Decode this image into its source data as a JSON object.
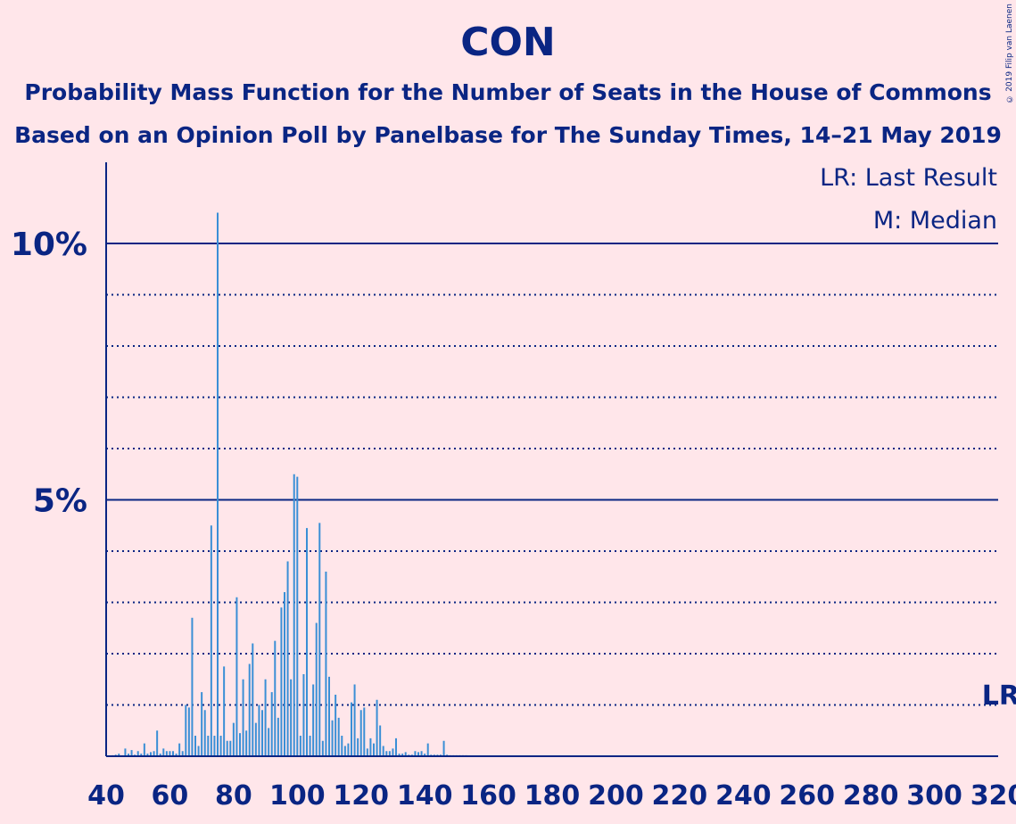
{
  "title": "CON",
  "subtitle1": "Probability Mass Function for the Number of Seats in the House of Commons",
  "subtitle2": "Based on an Opinion Poll by Panelbase for The Sunday Times, 14–21 May 2019",
  "copyright": "© 2019 Filip van Laenen",
  "legend": {
    "last_result": "LR: Last Result",
    "median": "M: Median"
  },
  "lr_label": "LR",
  "colors": {
    "background": "#ffe6ea",
    "axis": "#0a2583",
    "bar": "#3a8fd6"
  },
  "chart_data": {
    "type": "bar",
    "xlabel": "",
    "ylabel": "",
    "xlim": [
      40,
      320
    ],
    "ylim": [
      0,
      11.5
    ],
    "x_ticks": [
      40,
      60,
      80,
      100,
      120,
      140,
      160,
      180,
      200,
      220,
      240,
      260,
      280,
      300,
      320
    ],
    "y_ticks": [
      {
        "value": 5,
        "label": "5%"
      },
      {
        "value": 10,
        "label": "10%"
      }
    ],
    "y_minor_gridlines": [
      1,
      2,
      3,
      4,
      6,
      7,
      8,
      9
    ],
    "last_result_seat": 318,
    "median_seat": 97,
    "x": [
      42,
      43,
      44,
      45,
      46,
      47,
      48,
      49,
      50,
      51,
      52,
      53,
      54,
      55,
      56,
      57,
      58,
      59,
      60,
      61,
      62,
      63,
      64,
      65,
      66,
      67,
      68,
      69,
      70,
      71,
      72,
      73,
      74,
      75,
      76,
      77,
      78,
      79,
      80,
      81,
      82,
      83,
      84,
      85,
      86,
      87,
      88,
      89,
      90,
      91,
      92,
      93,
      94,
      95,
      96,
      97,
      98,
      99,
      100,
      101,
      102,
      103,
      104,
      105,
      106,
      107,
      108,
      109,
      110,
      111,
      112,
      113,
      114,
      115,
      116,
      117,
      118,
      119,
      120,
      121,
      122,
      123,
      124,
      125,
      126,
      127,
      128,
      129,
      130,
      131,
      132,
      133,
      134,
      135,
      136,
      137,
      138,
      139,
      140,
      141,
      142,
      143,
      144,
      145,
      146,
      147,
      148,
      149,
      150,
      151,
      152,
      153,
      154,
      155,
      156,
      157,
      158,
      159,
      160
    ],
    "values": [
      0.02,
      0.03,
      0.05,
      0.02,
      0.15,
      0.05,
      0.12,
      0.03,
      0.1,
      0.05,
      0.25,
      0.05,
      0.08,
      0.1,
      0.5,
      0.05,
      0.15,
      0.1,
      0.1,
      0.1,
      0.05,
      0.25,
      0.1,
      1.0,
      0.95,
      2.7,
      0.4,
      0.2,
      1.25,
      0.9,
      0.4,
      4.5,
      0.4,
      10.6,
      0.4,
      1.75,
      0.3,
      0.3,
      0.65,
      3.1,
      0.45,
      1.5,
      0.5,
      1.8,
      2.2,
      0.65,
      1.0,
      0.9,
      1.5,
      0.55,
      1.25,
      2.25,
      0.75,
      2.9,
      3.2,
      3.8,
      1.5,
      5.5,
      5.45,
      0.4,
      1.6,
      4.45,
      0.4,
      1.4,
      2.6,
      4.55,
      0.3,
      3.6,
      1.55,
      0.7,
      1.2,
      0.75,
      0.4,
      0.2,
      0.25,
      1.05,
      1.4,
      0.35,
      0.9,
      0.95,
      0.15,
      0.35,
      0.25,
      1.1,
      0.6,
      0.2,
      0.1,
      0.1,
      0.15,
      0.35,
      0.05,
      0.05,
      0.08,
      0.03,
      0.03,
      0.1,
      0.08,
      0.1,
      0.05,
      0.25,
      0.03,
      0.03,
      0.03,
      0.03,
      0.3,
      0.03,
      0.02,
      0.02,
      0.02,
      0.02,
      0.02,
      0.02,
      0.01,
      0.01,
      0.01,
      0.01,
      0.01,
      0.01,
      0.01
    ]
  }
}
